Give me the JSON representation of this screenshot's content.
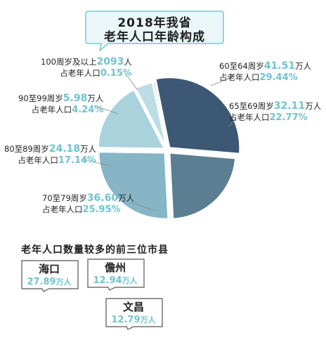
{
  "title": {
    "line1": "2018年我省",
    "line2": "老年人口年龄构成"
  },
  "chart_data": {
    "type": "pie",
    "title": "2018年我省老年人口年龄构成",
    "slices": [
      {
        "label": "60至64周岁",
        "population": 41.51,
        "unit": "万人",
        "share_prefix": "占老年人口",
        "share": 29.44,
        "share_text": "29.44%",
        "value_text": "41.51",
        "color": "#3c5874"
      },
      {
        "label": "65至69周岁",
        "population": 32.11,
        "unit": "万人",
        "share_prefix": "占老年人口",
        "share": 22.77,
        "share_text": "22.77%",
        "value_text": "32.11",
        "color": "#5b7e92"
      },
      {
        "label": "70至79周岁",
        "population": 36.6,
        "unit": "万人",
        "share_prefix": "占老年人口",
        "share": 25.95,
        "share_text": "25.95%",
        "value_text": "36.60",
        "color": "#86b5c6"
      },
      {
        "label": "80至89周岁",
        "population": 24.18,
        "unit": "万人",
        "share_prefix": "占老年人口",
        "share": 17.14,
        "share_text": "17.14%",
        "value_text": "24.18",
        "color": "#a9d2dd"
      },
      {
        "label": "90至99周岁",
        "population": 5.98,
        "unit": "万人",
        "share_prefix": "占老年人口",
        "share": 4.24,
        "share_text": "4.24%",
        "value_text": "5.98",
        "color": "#bcdde5"
      },
      {
        "label": "100周岁及以上",
        "population": 2093,
        "unit": "人",
        "share_prefix": "占老年人口",
        "share": 0.15,
        "share_text": "0.15%",
        "value_text": "2093",
        "color": "#dcdcdc"
      }
    ]
  },
  "counties_title": "老年人口数量较多的前三位市县",
  "counties": [
    {
      "name": "海口",
      "value": "27.89",
      "unit": "万人"
    },
    {
      "name": "儋州",
      "value": "12.94",
      "unit": "万人"
    },
    {
      "name": "文昌",
      "value": "12.79",
      "unit": "万人"
    }
  ]
}
